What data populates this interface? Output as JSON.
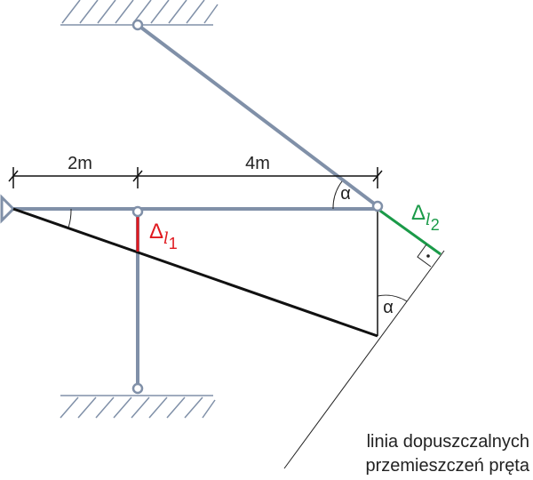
{
  "dimensions": {
    "left": "2m",
    "right": "4m"
  },
  "angles": {
    "top": "α",
    "bottom": "α"
  },
  "displacements": {
    "first": {
      "symbol": "Δ",
      "sub": "l",
      "index": "1"
    },
    "second": {
      "symbol": "Δ",
      "sub": "l",
      "index": "2"
    }
  },
  "caption": {
    "line1": "linia dopuszczalnych",
    "line2": "przemieszczeń pręta"
  }
}
